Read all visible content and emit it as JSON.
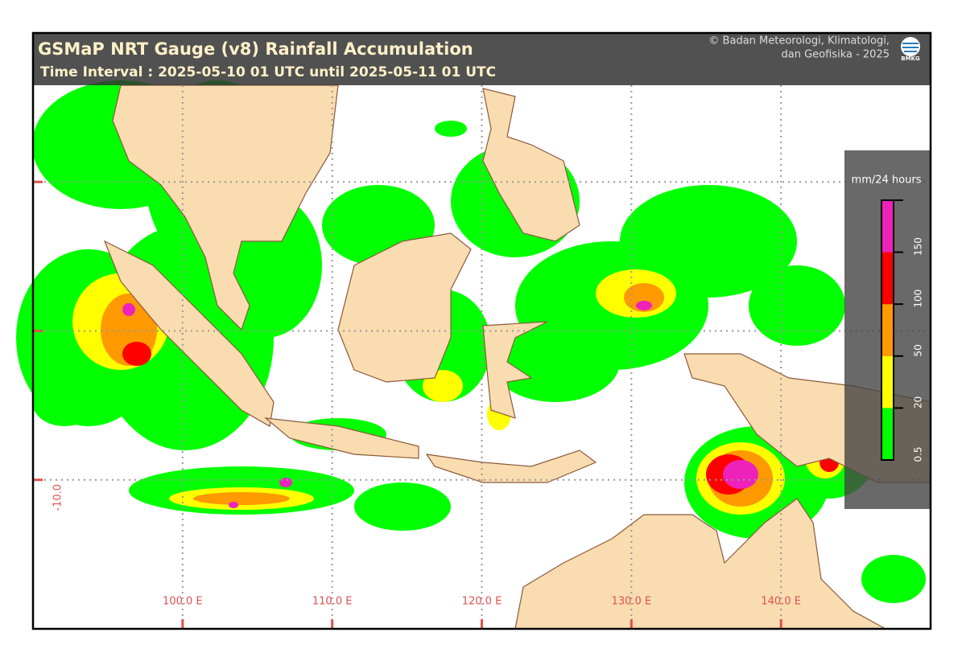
{
  "map": {
    "title": "GSMaP NRT Gauge (v8) Rainfall Accumulation",
    "subtitle": "Time Interval : 2025-05-10 01 UTC until 2025-05-11 01 UTC",
    "credit": [
      "© Badan Meteorologi, Klimatologi,",
      "dan Geofisika -  2025"
    ],
    "logo": "BMKG",
    "lonlim": [
      90,
      150
    ],
    "latlim": [
      -20,
      20
    ],
    "lon_ticks": [
      {
        "value": 100,
        "label": "100.0 E"
      },
      {
        "value": 110,
        "label": "110.0 E"
      },
      {
        "value": 120,
        "label": "120.0 E"
      },
      {
        "value": 130,
        "label": "130.0 E"
      },
      {
        "value": 140,
        "label": "140.0 E"
      }
    ],
    "lat_ticks": [
      {
        "value": 10,
        "label": null
      },
      {
        "value": 0,
        "label": null
      },
      {
        "value": -10,
        "label": "-10.0"
      }
    ],
    "legend": {
      "title": "mm/24 hours",
      "colors": [
        "#00ff00",
        "#ffff00",
        "#ff9900",
        "#ff0000",
        "#ee22bb"
      ],
      "labels": [
        "0.5",
        "20",
        "50",
        "100",
        "150"
      ]
    }
  }
}
